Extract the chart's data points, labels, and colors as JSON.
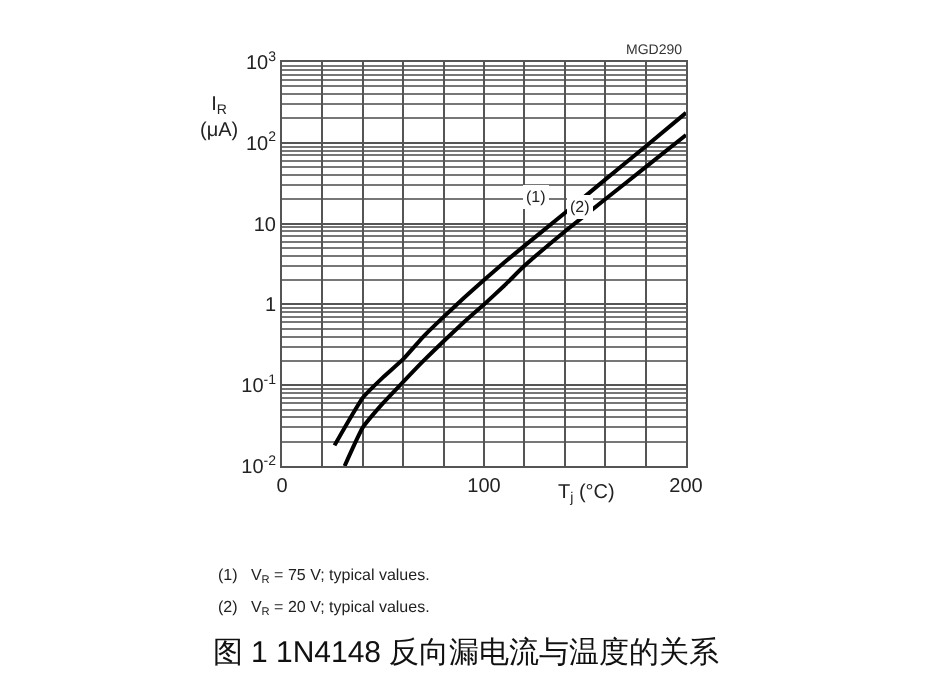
{
  "chart_data": {
    "type": "line",
    "title": "图 1 1N4148 反向漏电流与温度的关系",
    "xlabel": "T$_{j}$ (°C)",
    "ylabel": "I$_{R}$\n(μA)",
    "annotations": [
      "MGD290",
      "(1)   V$_{R}$ = 75 V; typical values.",
      "(2)   V$_{R}$ = 20 V; typical values."
    ],
    "series": [
      {
        "name": "(1)",
        "color": "#000000",
        "x": [
          26,
          30,
          40,
          50,
          60,
          70,
          80,
          90,
          100,
          110,
          120,
          140,
          160,
          180,
          200
        ],
        "values": [
          0.018,
          0.027,
          0.07,
          0.125,
          0.21,
          0.4,
          0.7,
          1.2,
          2,
          3.3,
          5.3,
          13.5,
          35,
          90,
          235
        ]
      },
      {
        "name": "(2)",
        "color": "#000000",
        "x": [
          31,
          40,
          50,
          60,
          70,
          80,
          90,
          100,
          110,
          120,
          140,
          160,
          180,
          200
        ],
        "values": [
          0.01,
          0.03,
          0.06,
          0.11,
          0.2,
          0.35,
          0.6,
          1,
          1.7,
          3,
          8,
          20,
          50,
          125
        ]
      }
    ],
    "log": "y",
    "grid": true,
    "legend": false,
    "marker": "none",
    "line_style": "solid",
    "xlim": [
      0,
      200
    ],
    "xticks": [
      0,
      {
        "value": 20,
        "label": null
      },
      {
        "value": 40,
        "label": null
      },
      {
        "value": 60,
        "label": null
      },
      {
        "value": 80,
        "label": null
      },
      100,
      {
        "value": 120,
        "label": null
      },
      {
        "value": 140,
        "label": null
      },
      {
        "value": 160,
        "label": null
      },
      {
        "value": 180,
        "label": null
      },
      200
    ],
    "ylim": [
      0.01,
      1000
    ],
    "yticks": [
      {
        "value": 0.01,
        "label": "10$^{-2}$"
      },
      {
        "value": 0.1,
        "label": "10$^{-1}$"
      },
      1,
      10,
      {
        "value": 100,
        "label": "10$^{2}$"
      },
      {
        "value": 1000,
        "label": "10$^{3}$"
      }
    ]
  }
}
